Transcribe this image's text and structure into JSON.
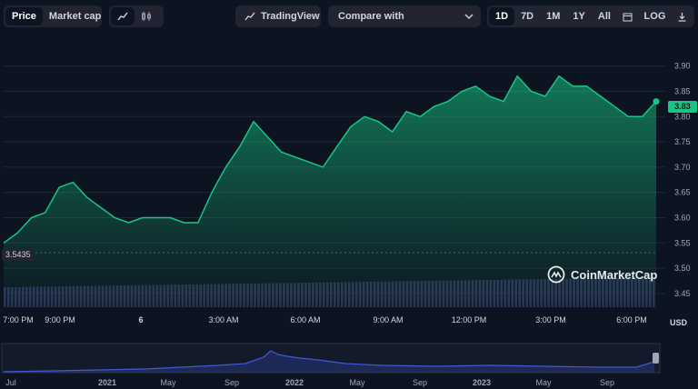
{
  "toolbar": {
    "price_label": "Price",
    "market_cap_label": "Market cap",
    "tradingview_label": "TradingView",
    "compare_label": "Compare with",
    "ranges": [
      "1D",
      "7D",
      "1M",
      "1Y",
      "All"
    ],
    "log_label": "LOG"
  },
  "watermark": "CoinMarketCap",
  "currency": "USD",
  "current_price_label": "3.83",
  "open_price_label": "3.5435",
  "colors": {
    "line": "#16c784",
    "background": "#0d1421",
    "volume": "#2b3352",
    "overview": "#3e5bd6"
  },
  "chart_data": {
    "type": "area",
    "ylim": [
      3.43,
      3.93
    ],
    "yticks": [
      "3.90",
      "3.85",
      "3.80",
      "3.75",
      "3.70",
      "3.65",
      "3.60",
      "3.55",
      "3.50",
      "3.45"
    ],
    "xticks": [
      "7:00 PM",
      "9:00 PM",
      "6",
      "3:00 AM",
      "6:00 AM",
      "9:00 AM",
      "12:00 PM",
      "3:00 PM",
      "6:00 PM"
    ],
    "x": [
      "7:00 PM",
      "7:30 PM",
      "8:00 PM",
      "8:30 PM",
      "9:00 PM",
      "9:30 PM",
      "10:00 PM",
      "10:30 PM",
      "11:00 PM",
      "11:30 PM",
      "12:00 AM",
      "12:30 AM",
      "1:00 AM",
      "1:30 AM",
      "2:00 AM",
      "2:30 AM",
      "3:00 AM",
      "3:30 AM",
      "4:00 AM",
      "4:30 AM",
      "5:00 AM",
      "5:30 AM",
      "6:00 AM",
      "6:30 AM",
      "7:00 AM",
      "7:30 AM",
      "8:00 AM",
      "8:30 AM",
      "9:00 AM",
      "9:30 AM",
      "10:00 AM",
      "10:30 AM",
      "11:00 AM",
      "11:30 AM",
      "12:00 PM",
      "12:30 PM",
      "1:00 PM",
      "1:30 PM",
      "2:00 PM",
      "2:30 PM",
      "3:00 PM",
      "3:30 PM",
      "4:00 PM",
      "4:30 PM",
      "5:00 PM",
      "5:30 PM",
      "6:00 PM",
      "6:30 PM"
    ],
    "values": [
      3.55,
      3.57,
      3.6,
      3.61,
      3.66,
      3.67,
      3.64,
      3.62,
      3.6,
      3.59,
      3.6,
      3.6,
      3.6,
      3.59,
      3.59,
      3.65,
      3.7,
      3.74,
      3.79,
      3.76,
      3.73,
      3.72,
      3.71,
      3.7,
      3.74,
      3.78,
      3.8,
      3.79,
      3.77,
      3.81,
      3.8,
      3.82,
      3.83,
      3.85,
      3.86,
      3.84,
      3.83,
      3.88,
      3.85,
      3.84,
      3.88,
      3.86,
      3.86,
      3.84,
      3.82,
      3.8,
      3.8,
      3.83
    ],
    "overview_xticks": [
      "Jul",
      "2021",
      "May",
      "Sep",
      "2022",
      "May",
      "Sep",
      "2023",
      "May",
      "Sep"
    ]
  }
}
